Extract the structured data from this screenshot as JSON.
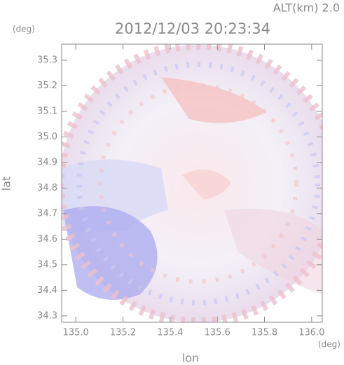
{
  "chart_data": {
    "type": "image",
    "title": "2012/12/03 20:23:34",
    "altitude_label": "ALT(km) 2.0",
    "y_unit": "(deg)",
    "x_unit": "(deg)",
    "xlabel": "lon",
    "ylabel": "lat",
    "xlim": [
      134.94,
      136.045
    ],
    "ylim": [
      34.275,
      35.363
    ],
    "xticks": [
      {
        "value": 135,
        "label": "135.0"
      },
      135.2,
      135.4,
      135.6,
      135.8,
      {
        "value": 136,
        "label": "136.0"
      }
    ],
    "yticks": [
      34.3,
      34.4,
      34.5,
      34.6,
      34.7,
      34.8,
      34.9,
      {
        "value": 35,
        "label": "35.0"
      },
      35.1,
      35.2,
      35.3
    ]
  }
}
